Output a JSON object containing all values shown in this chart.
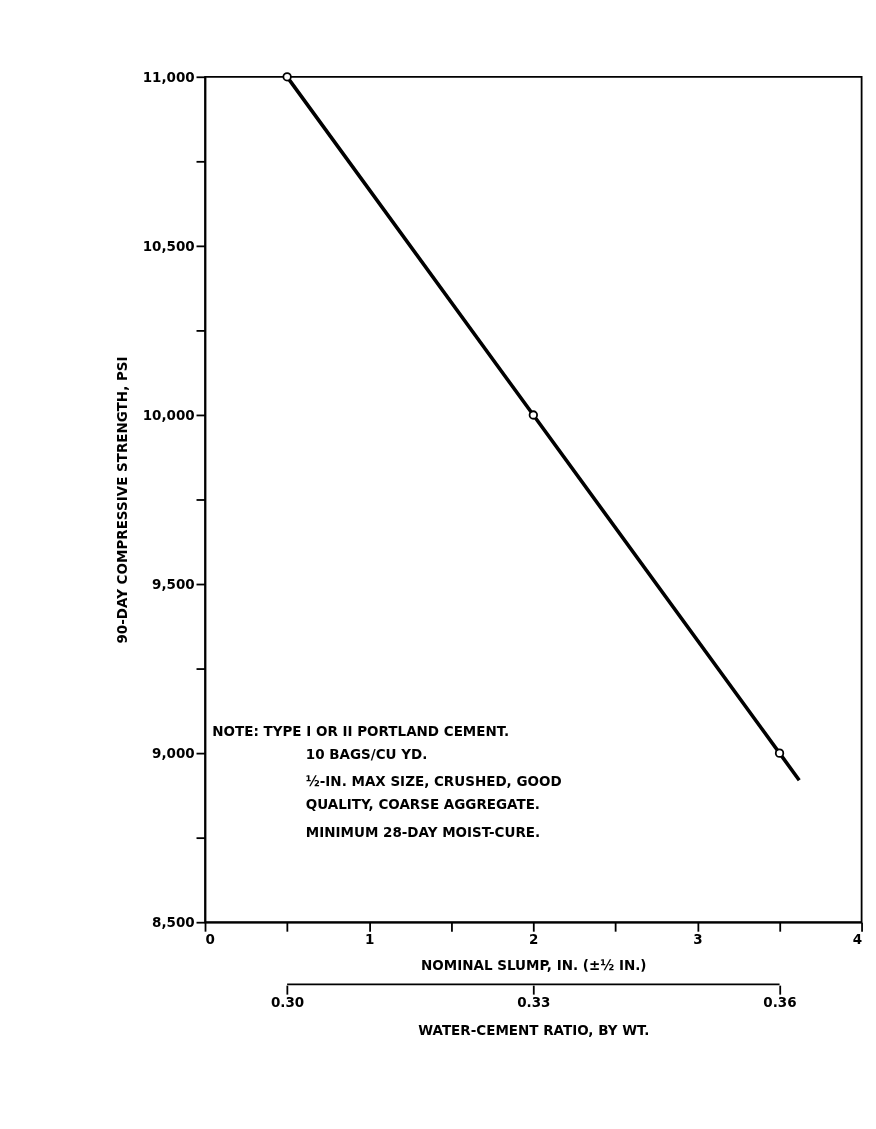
{
  "chart_data": {
    "type": "line",
    "xlabel": "NOMINAL SLUMP, IN. (±½ IN.)",
    "ylabel": "90-DAY COMPRESSIVE STRENGTH, PSI",
    "x2label": "WATER-CEMENT RATIO, BY WT.",
    "series": [
      {
        "color": "#000000",
        "marker": "none",
        "x": [
          0.5,
          2,
          3.5,
          3.62
        ],
        "values": [
          11000,
          10000,
          9000,
          8920
        ]
      },
      {
        "type": "scatter",
        "color": "#000000",
        "marker": "circle",
        "x": [
          0.5,
          2,
          3.5
        ],
        "values": [
          11000,
          10000,
          9000
        ]
      }
    ],
    "xlim": [
      0,
      4
    ],
    "xticks": [
      0,
      {
        "value": 0.5,
        "label": null
      },
      1,
      {
        "value": 1.5,
        "label": null
      },
      2,
      {
        "value": 2.5,
        "label": null
      },
      3,
      {
        "value": 3.5,
        "label": null
      },
      4
    ],
    "ylim": [
      8500,
      11000
    ],
    "yticks": [
      {
        "value": 8500,
        "label": "8,500"
      },
      {
        "value": 8750,
        "label": null
      },
      {
        "value": 9000,
        "label": "9,000"
      },
      {
        "value": 9250,
        "label": null
      },
      {
        "value": 9500,
        "label": "9,500"
      },
      {
        "value": 9750,
        "label": null
      },
      {
        "value": 10000,
        "label": "10,000"
      },
      {
        "value": 10250,
        "label": null
      },
      {
        "value": 10500,
        "label": "10,500"
      },
      {
        "value": 10750,
        "label": null
      },
      {
        "value": 11000,
        "label": "11,000"
      }
    ],
    "x2lim": [
      0.29,
      0.37
    ],
    "x2ticks": [
      {
        "value": 0.3,
        "label": "0.30"
      },
      {
        "value": 0.33,
        "label": "0.33"
      },
      {
        "value": 0.36,
        "label": "0.36"
      }
    ],
    "annotations": [
      "NOTE:  TYPE I OR II PORTLAND CEMENT.",
      "10 BAGS/CU YD.",
      "½-IN. MAX SIZE, CRUSHED, GOOD",
      "QUALITY, COARSE AGGREGATE.",
      "MINIMUM 28-DAY MOIST-CURE."
    ],
    "grid": false
  }
}
